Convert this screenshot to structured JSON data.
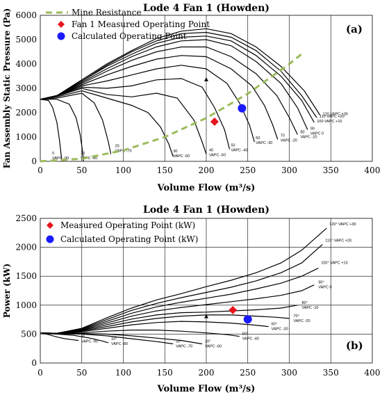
{
  "chart_data": [
    {
      "panel_label": "(a)",
      "type": "line",
      "title": "Lode 4 Fan 1 (Howden)",
      "xlabel": "Volume Flow (m³/s)",
      "ylabel": "Fan Assembly Static Pressure (Pa)",
      "xlim": [
        0,
        400
      ],
      "ylim": [
        0,
        6000
      ],
      "xticks": [
        "0",
        "50",
        "100",
        "150",
        "200",
        "250",
        "300",
        "350",
        "400"
      ],
      "yticks": [
        "0",
        "1000",
        "2000",
        "3000",
        "4000",
        "5000",
        "6000"
      ],
      "grid": "vertical",
      "legend_position": "top-left",
      "legend": [
        {
          "label": "Mine Resistance",
          "marker": "dashed-line",
          "color": "#9bbb59"
        },
        {
          "label": "Fan 1 Measured Operating Point",
          "marker": "diamond",
          "color": "#e8141c"
        },
        {
          "label": "Calculated Operating Point",
          "marker": "circle",
          "color": "#1a1aff"
        }
      ],
      "fan_curves": [
        {
          "label": "0\nVAPC -90",
          "x": [
            0,
            10,
            15,
            20,
            23,
            25,
            26
          ],
          "y": [
            2550,
            2500,
            2200,
            1600,
            900,
            300,
            0
          ]
        },
        {
          "label": "10\nVAPC -80",
          "x": [
            0,
            20,
            35,
            43,
            48,
            51,
            52
          ],
          "y": [
            2550,
            2550,
            2350,
            1800,
            1100,
            400,
            0
          ]
        },
        {
          "label": "20\nVAPC -70",
          "x": [
            0,
            20,
            50,
            65,
            75,
            82,
            85
          ],
          "y": [
            2550,
            2600,
            2800,
            2400,
            1700,
            800,
            300
          ]
        },
        {
          "label": "30\nVAPC -60",
          "x": [
            0,
            20,
            50,
            80,
            110,
            130,
            145,
            155,
            160
          ],
          "y": [
            2550,
            2650,
            2900,
            2600,
            2300,
            2000,
            1400,
            700,
            200
          ]
        },
        {
          "label": "40\nVAPC -50",
          "x": [
            0,
            20,
            50,
            80,
            110,
            140,
            165,
            185,
            195,
            200
          ],
          "y": [
            2550,
            2680,
            3000,
            2750,
            2650,
            2800,
            2600,
            1700,
            800,
            300
          ]
        },
        {
          "label": "50\nVAPC -40",
          "x": [
            0,
            20,
            50,
            80,
            110,
            140,
            170,
            195,
            210,
            222,
            228
          ],
          "y": [
            2550,
            2700,
            3050,
            3000,
            3100,
            3350,
            3400,
            3050,
            2200,
            1300,
            500
          ]
        },
        {
          "label": "60\nVAPC -30",
          "x": [
            0,
            20,
            50,
            80,
            110,
            140,
            170,
            200,
            225,
            240,
            252,
            258
          ],
          "y": [
            2550,
            2700,
            3100,
            3300,
            3550,
            3800,
            3950,
            3800,
            3200,
            2400,
            1500,
            800
          ]
        },
        {
          "label": "70\nVAPC -20",
          "x": [
            0,
            20,
            50,
            80,
            110,
            140,
            170,
            200,
            230,
            255,
            270,
            280,
            286
          ],
          "y": [
            2550,
            2700,
            3150,
            3550,
            3900,
            4200,
            4350,
            4300,
            3800,
            3100,
            2300,
            1500,
            900
          ]
        },
        {
          "label": "80\nVAPC -10",
          "x": [
            0,
            20,
            50,
            80,
            110,
            140,
            170,
            200,
            230,
            260,
            285,
            300,
            310
          ],
          "y": [
            2550,
            2700,
            3200,
            3700,
            4150,
            4500,
            4700,
            4700,
            4300,
            3600,
            2700,
            1800,
            1100
          ]
        },
        {
          "label": "90\nVAPC 0",
          "x": [
            0,
            20,
            50,
            80,
            110,
            140,
            170,
            200,
            230,
            260,
            290,
            310,
            322
          ],
          "y": [
            2550,
            2700,
            3250,
            3800,
            4300,
            4700,
            4950,
            5000,
            4750,
            4100,
            3200,
            2200,
            1300
          ]
        },
        {
          "label": "100 VAPC +10",
          "x": [
            0,
            20,
            50,
            80,
            110,
            140,
            170,
            200,
            230,
            260,
            290,
            315,
            330
          ],
          "y": [
            2550,
            2700,
            3300,
            3900,
            4400,
            4850,
            5100,
            5150,
            4950,
            4350,
            3500,
            2500,
            1600
          ]
        },
        {
          "label": "110 VAPC +20",
          "x": [
            0,
            20,
            50,
            80,
            110,
            140,
            170,
            200,
            230,
            260,
            290,
            315,
            333
          ],
          "y": [
            2550,
            2700,
            3300,
            3950,
            4500,
            4950,
            5250,
            5300,
            5100,
            4550,
            3700,
            2700,
            1800
          ]
        },
        {
          "label": "120 VAPC +30",
          "x": [
            0,
            20,
            50,
            80,
            110,
            140,
            170,
            200,
            230,
            260,
            290,
            318,
            337
          ],
          "y": [
            2550,
            2700,
            3350,
            4000,
            4550,
            5050,
            5350,
            5450,
            5250,
            4700,
            3900,
            2900,
            1900
          ]
        }
      ],
      "mine_resistance": {
        "x": [
          0,
          50,
          100,
          150,
          200,
          250,
          300,
          317
        ],
        "y": [
          0,
          110,
          450,
          1000,
          1780,
          2780,
          4000,
          4470
        ]
      },
      "measured_point": {
        "x": 210,
        "y": 1630
      },
      "calculated_point": {
        "x": 243,
        "y": 2180
      },
      "reference_marker": {
        "x": 200,
        "y": 3350
      }
    },
    {
      "panel_label": "(b)",
      "type": "line",
      "title": "Lode 4 Fan 1 (Howden)",
      "xlabel": "Volume Flow (m³/s)",
      "ylabel": "Power (kW)",
      "xlim": [
        0,
        400
      ],
      "ylim": [
        0,
        2500
      ],
      "xticks": [
        "0",
        "50",
        "100",
        "150",
        "200",
        "250",
        "300",
        "350",
        "400"
      ],
      "yticks": [
        "0",
        "500",
        "1000",
        "1500",
        "2000",
        "2500"
      ],
      "grid": "both",
      "legend_position": "top-left",
      "legend": [
        {
          "label": "Measured Operating Point (kW)",
          "marker": "diamond",
          "color": "#e8141c"
        },
        {
          "label": "Calculated Operating Point (kW)",
          "marker": "circle",
          "color": "#1a1aff"
        }
      ],
      "power_curves": [
        {
          "label": "0°\nVAPC -90",
          "x": [
            0,
            10,
            20,
            30,
            40,
            46
          ],
          "y": [
            520,
            490,
            450,
            420,
            400,
            390
          ]
        },
        {
          "label": "10°\nVAPC -80",
          "x": [
            0,
            20,
            40,
            60,
            75,
            82
          ],
          "y": [
            520,
            500,
            480,
            430,
            380,
            350
          ]
        },
        {
          "label": "20°\nVAPC -70",
          "x": [
            0,
            20,
            50,
            80,
            110,
            140,
            160
          ],
          "y": [
            520,
            510,
            500,
            470,
            420,
            370,
            330
          ]
        },
        {
          "label": "30°\nVAPC -60",
          "x": [
            0,
            20,
            50,
            80,
            110,
            140,
            170,
            195
          ],
          "y": [
            520,
            510,
            510,
            500,
            470,
            430,
            390,
            330
          ]
        },
        {
          "label": "50°\nVAPC -40",
          "x": [
            0,
            20,
            50,
            80,
            110,
            140,
            170,
            200,
            225,
            240
          ],
          "y": [
            520,
            510,
            520,
            550,
            570,
            570,
            550,
            520,
            490,
            460
          ]
        },
        {
          "label": "60°\nVAPC -30",
          "x": [
            0,
            20,
            50,
            80,
            110,
            140,
            170,
            200,
            230,
            255,
            275
          ],
          "y": [
            520,
            510,
            540,
            600,
            660,
            700,
            720,
            710,
            690,
            660,
            630
          ]
        },
        {
          "label": "70°\nVAPC -20",
          "x": [
            0,
            20,
            50,
            80,
            110,
            140,
            170,
            200,
            230,
            260,
            285,
            300
          ],
          "y": [
            520,
            510,
            550,
            630,
            710,
            770,
            810,
            830,
            830,
            810,
            790,
            770
          ]
        },
        {
          "label": "80°\nVAPC -10",
          "x": [
            0,
            20,
            50,
            80,
            110,
            140,
            170,
            200,
            230,
            260,
            290,
            310
          ],
          "y": [
            520,
            515,
            560,
            660,
            760,
            830,
            870,
            880,
            900,
            920,
            950,
            1000
          ]
        },
        {
          "label": "90°\nVAPC 0",
          "x": [
            0,
            20,
            50,
            80,
            110,
            140,
            170,
            200,
            230,
            260,
            290,
            315,
            330
          ],
          "y": [
            520,
            515,
            570,
            690,
            810,
            900,
            960,
            1010,
            1060,
            1110,
            1170,
            1250,
            1350
          ]
        },
        {
          "label": "100° VAPC +10",
          "x": [
            0,
            20,
            50,
            80,
            110,
            140,
            170,
            200,
            230,
            260,
            290,
            315,
            335
          ],
          "y": [
            520,
            515,
            580,
            720,
            860,
            970,
            1050,
            1120,
            1190,
            1280,
            1380,
            1500,
            1640
          ]
        },
        {
          "label": "110° VAPC +20",
          "x": [
            0,
            20,
            50,
            80,
            110,
            140,
            170,
            200,
            230,
            260,
            290,
            315,
            340
          ],
          "y": [
            520,
            515,
            590,
            750,
            910,
            1030,
            1130,
            1220,
            1310,
            1420,
            1560,
            1730,
            2050
          ]
        },
        {
          "label": "120° VAPC +30",
          "x": [
            0,
            20,
            50,
            80,
            110,
            140,
            170,
            200,
            230,
            260,
            290,
            315,
            345
          ],
          "y": [
            520,
            515,
            600,
            780,
            950,
            1090,
            1200,
            1320,
            1430,
            1560,
            1730,
            1950,
            2330
          ]
        }
      ],
      "measured_point": {
        "x": 232,
        "y": 915
      },
      "calculated_point": {
        "x": 250,
        "y": 755
      },
      "reference_marker": {
        "x": 200,
        "y": 800
      }
    }
  ]
}
